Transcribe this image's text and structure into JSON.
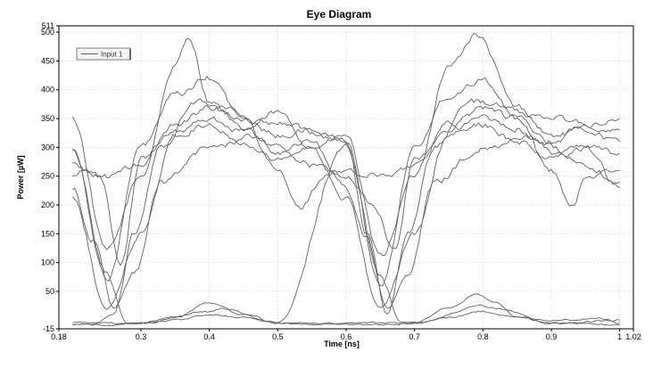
{
  "chart_data": {
    "type": "line",
    "title": "Eye Diagram",
    "xlabel": "Time [ns]",
    "ylabel": "Power [µW]",
    "xlim": [
      0.18,
      1.02
    ],
    "ylim": [
      -15,
      511
    ],
    "x_ticks": [
      {
        "value": 0.18,
        "label": "0.18"
      },
      {
        "value": 0.3,
        "label": "0.3"
      },
      {
        "value": 0.4,
        "label": "0.4"
      },
      {
        "value": 0.5,
        "label": "0.5"
      },
      {
        "value": 0.6,
        "label": "0.6"
      },
      {
        "value": 0.7,
        "label": "0.7"
      },
      {
        "value": 0.8,
        "label": "0.8"
      },
      {
        "value": 0.9,
        "label": "0.9"
      },
      {
        "value": 1.0,
        "label": "1"
      },
      {
        "value": 1.02,
        "label": "1.02"
      }
    ],
    "y_ticks": [
      {
        "value": -15,
        "label": "-15"
      },
      {
        "value": 50,
        "label": "50"
      },
      {
        "value": 100,
        "label": "100"
      },
      {
        "value": 150,
        "label": "150"
      },
      {
        "value": 200,
        "label": "200"
      },
      {
        "value": 250,
        "label": "250"
      },
      {
        "value": 300,
        "label": "300"
      },
      {
        "value": 350,
        "label": "350"
      },
      {
        "value": 400,
        "label": "400"
      },
      {
        "value": 450,
        "label": "450"
      },
      {
        "value": 500,
        "label": "500"
      },
      {
        "value": 511,
        "label": "511"
      }
    ],
    "grid": true,
    "legend": {
      "position": "top-left",
      "entries": [
        "Input 1"
      ]
    },
    "trace_color": "#606060",
    "series": [
      {
        "name": "Input 1",
        "x": [
          0.2,
          0.25,
          0.3,
          0.35,
          0.37,
          0.4,
          0.45,
          0.5,
          0.55,
          0.6,
          0.65,
          0.7,
          0.75,
          0.79,
          0.85,
          0.9,
          0.95,
          1.0
        ],
        "y": [
          350,
          120,
          250,
          440,
          492,
          380,
          330,
          360,
          300,
          320,
          110,
          250,
          440,
          495,
          370,
          320,
          330,
          310
        ]
      },
      {
        "name": "Input 1",
        "x": [
          0.2,
          0.25,
          0.3,
          0.35,
          0.4,
          0.45,
          0.5,
          0.55,
          0.6,
          0.65,
          0.7,
          0.75,
          0.8,
          0.85,
          0.9,
          0.95,
          1.0
        ],
        "y": [
          300,
          70,
          300,
          390,
          420,
          350,
          320,
          330,
          310,
          60,
          300,
          390,
          420,
          350,
          310,
          340,
          350
        ]
      },
      {
        "name": "Input 1",
        "x": [
          0.2,
          0.22,
          0.25,
          0.3,
          0.35,
          0.4,
          0.45,
          0.5,
          0.53,
          0.57,
          0.6,
          0.63,
          0.67,
          0.7,
          0.75,
          0.8,
          0.85,
          0.9,
          0.93,
          0.95,
          1.0
        ],
        "y": [
          250,
          260,
          250,
          270,
          340,
          370,
          350,
          260,
          195,
          250,
          260,
          250,
          255,
          270,
          340,
          370,
          350,
          260,
          195,
          250,
          260
        ]
      },
      {
        "name": "Input 1",
        "x": [
          0.2,
          0.24,
          0.27,
          0.3,
          0.35,
          0.4,
          0.45,
          0.5,
          0.55,
          0.6,
          0.64,
          0.67,
          0.7,
          0.75,
          0.8,
          0.85,
          0.9,
          0.95,
          1.0
        ],
        "y": [
          270,
          250,
          100,
          280,
          330,
          350,
          330,
          300,
          270,
          250,
          200,
          120,
          280,
          330,
          350,
          330,
          300,
          270,
          240
        ]
      },
      {
        "name": "Input 1",
        "x": [
          0.2,
          0.23,
          0.26,
          0.29,
          0.33,
          0.4,
          0.47,
          0.5,
          0.55,
          0.6,
          0.63,
          0.66,
          0.69,
          0.73,
          0.8,
          0.87,
          0.9,
          0.95,
          1.0
        ],
        "y": [
          230,
          140,
          20,
          80,
          240,
          300,
          320,
          290,
          310,
          230,
          140,
          20,
          80,
          240,
          300,
          320,
          290,
          300,
          290
        ]
      },
      {
        "name": "Input 1",
        "x": [
          0.2,
          0.25,
          0.3,
          0.35,
          0.4,
          0.45,
          0.5,
          0.55,
          0.6,
          0.65,
          0.7,
          0.75,
          0.8,
          0.85,
          0.9,
          0.95,
          1.0
        ],
        "y": [
          215,
          20,
          150,
          320,
          340,
          310,
          280,
          300,
          210,
          20,
          150,
          320,
          340,
          310,
          280,
          300,
          230
        ]
      },
      {
        "name": "Input 1",
        "x": [
          0.2,
          0.23,
          0.26,
          0.29,
          0.33,
          0.38,
          0.5,
          0.6,
          0.63,
          0.66,
          0.69,
          0.73,
          0.78,
          0.9,
          1.0
        ],
        "y": [
          -8,
          -8,
          10,
          150,
          300,
          380,
          340,
          310,
          150,
          10,
          150,
          300,
          380,
          350,
          330
        ]
      },
      {
        "name": "Input 1",
        "x": [
          0.2,
          0.25,
          0.28,
          0.3,
          0.4,
          0.42,
          0.5,
          0.6,
          0.65,
          0.68,
          0.7,
          0.8,
          0.82,
          0.9,
          1.0
        ],
        "y": [
          300,
          80,
          -5,
          -5,
          15,
          20,
          -5,
          300,
          80,
          -5,
          -5,
          25,
          20,
          -5,
          0
        ]
      },
      {
        "name": "Input 1",
        "x": [
          0.2,
          0.26,
          0.3,
          0.35,
          0.4,
          0.45,
          0.5,
          0.6,
          0.66,
          0.7,
          0.75,
          0.79,
          0.82,
          0.85,
          0.9,
          1.0
        ],
        "y": [
          -8,
          -8,
          -5,
          5,
          30,
          10,
          -5,
          -8,
          -8,
          -5,
          20,
          45,
          30,
          5,
          -5,
          -8
        ]
      },
      {
        "name": "Input 1",
        "x": [
          0.2,
          0.3,
          0.35,
          0.4,
          0.45,
          0.5,
          0.6,
          0.7,
          0.75,
          0.8,
          0.85,
          0.9,
          0.98,
          1.0
        ],
        "y": [
          -5,
          -5,
          0,
          10,
          5,
          -5,
          -5,
          -5,
          5,
          15,
          5,
          0,
          3,
          -5
        ]
      }
    ]
  }
}
